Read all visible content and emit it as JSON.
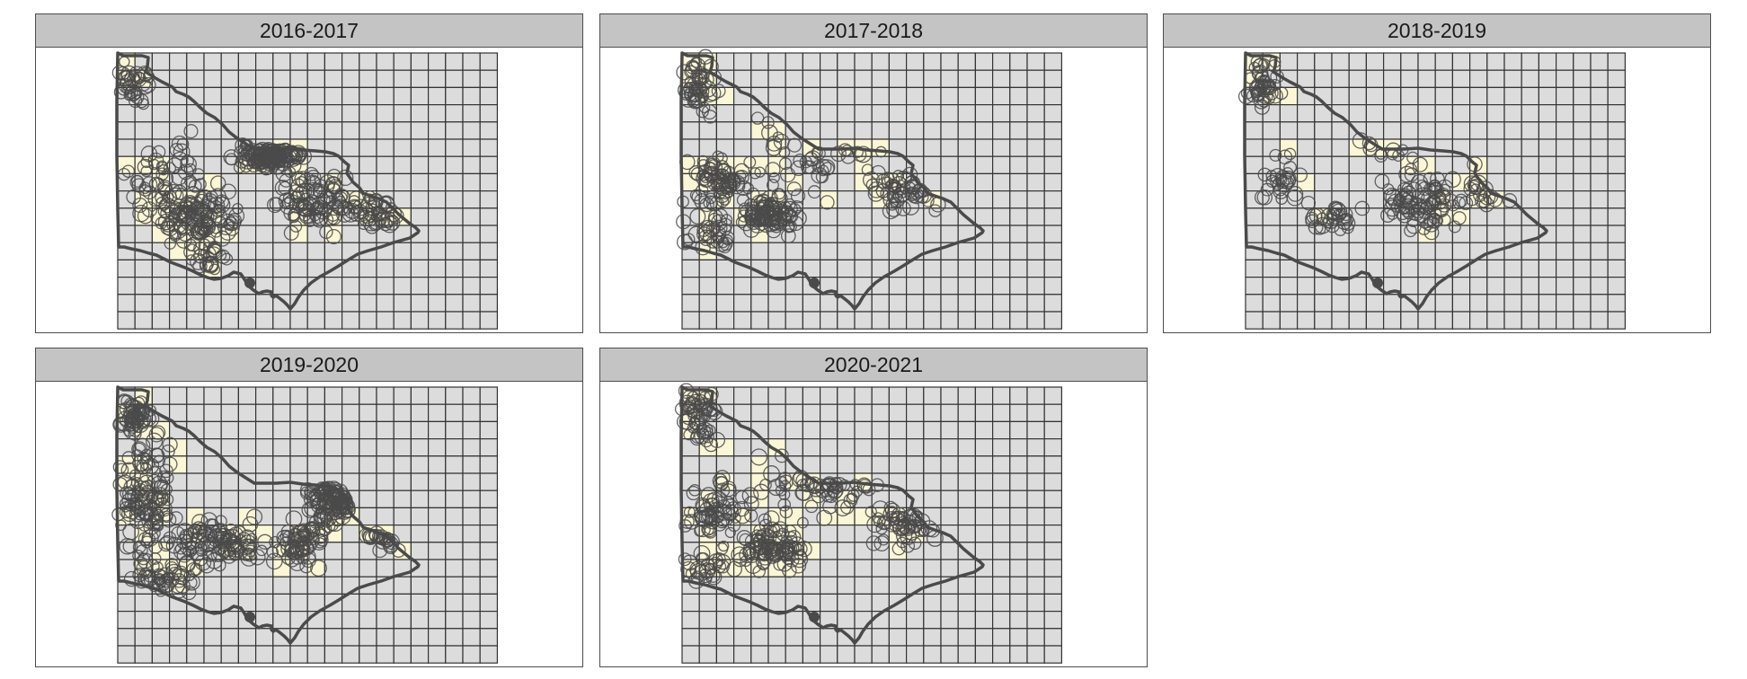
{
  "panels": [
    {
      "title": "2016-2017",
      "density": "high",
      "focus": "central-east"
    },
    {
      "title": "2017-2018",
      "density": "medium",
      "focus": "south-west"
    },
    {
      "title": "2018-2019",
      "density": "low",
      "focus": "central"
    },
    {
      "title": "2019-2020",
      "density": "high",
      "focus": "east"
    },
    {
      "title": "2020-2021",
      "density": "medium",
      "focus": "south-west"
    }
  ],
  "colors": {
    "grid_fill": "#dcdcdc",
    "highlight_fill": "#fbf6d6",
    "grid_line": "#333333",
    "outline": "#4a4a4a",
    "marker": "#4a4a4a",
    "strip": "#c4c4c4"
  },
  "icons": {
    "marker": "circle-marker-icon"
  }
}
